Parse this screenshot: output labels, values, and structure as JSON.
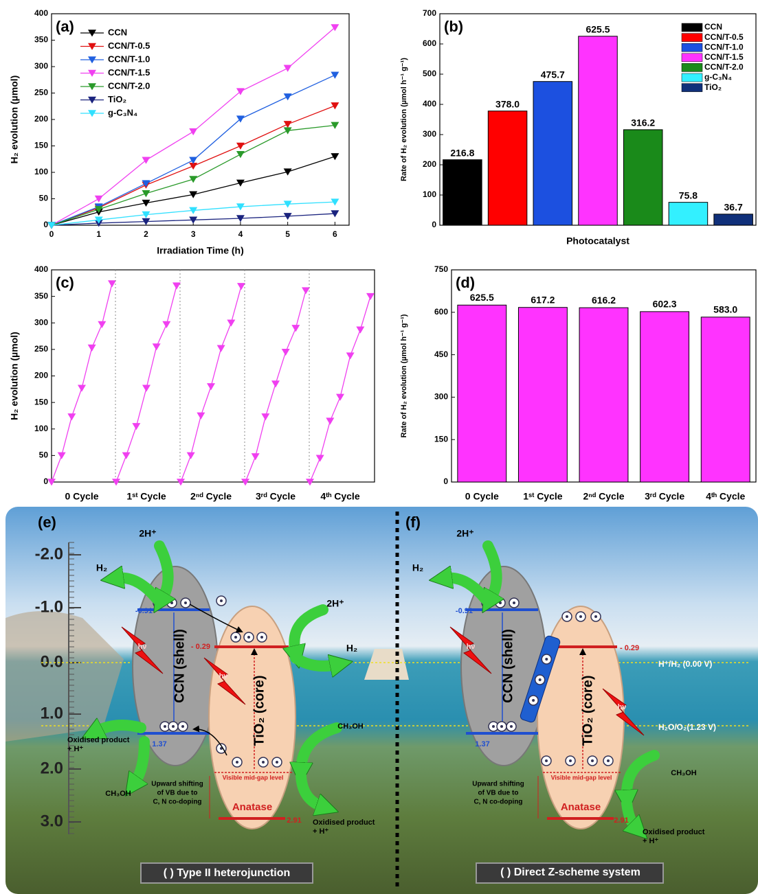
{
  "chart_data": [
    {
      "type": "line",
      "label": "(a)",
      "xlabel": "Irradiation Time (h)",
      "ylabel": "H₂ evolution (µmol)",
      "x": [
        0,
        1,
        2,
        3,
        4,
        5,
        6
      ],
      "xlim": [
        0,
        6.3
      ],
      "xticks": [
        0,
        1,
        2,
        3,
        4,
        5,
        6
      ],
      "ylim": [
        0,
        400
      ],
      "yticks": [
        0,
        50,
        100,
        150,
        200,
        250,
        300,
        350,
        400
      ],
      "grid": false,
      "legend": "top-left",
      "series": [
        {
          "name": "CCN",
          "color": "#000000",
          "values": [
            0,
            25,
            42,
            58,
            80,
            101,
            130
          ]
        },
        {
          "name": "CCN/T-0.5",
          "color": "#e01010",
          "values": [
            0,
            33,
            76,
            112,
            150,
            191,
            226
          ]
        },
        {
          "name": "CCN/T-1.0",
          "color": "#2060e0",
          "values": [
            0,
            35,
            79,
            123,
            201,
            243,
            284
          ]
        },
        {
          "name": "CCN/T-1.5",
          "color": "#f040f0",
          "values": [
            0,
            50,
            123,
            177,
            253,
            297,
            374
          ]
        },
        {
          "name": "CCN/T-2.0",
          "color": "#2a9a2a",
          "values": [
            0,
            30,
            60,
            87,
            134,
            179,
            189
          ]
        },
        {
          "name": "TiO₂",
          "color": "#1a237e",
          "values": [
            0,
            4,
            7,
            10,
            13,
            17,
            22
          ]
        },
        {
          "name": "g-C₃N₄",
          "color": "#30e0ff",
          "values": [
            0,
            10,
            20,
            28,
            35,
            40,
            44
          ]
        }
      ]
    },
    {
      "type": "bar",
      "label": "(b)",
      "xlabel": "Photocatalyst",
      "ylabel": "Rate of H₂ evolution (µmol h⁻¹ g⁻¹)",
      "ylim": [
        0,
        700
      ],
      "yticks": [
        0,
        100,
        200,
        300,
        400,
        500,
        600,
        700
      ],
      "grid": false,
      "legend": "top-right",
      "series": [
        {
          "name": "CCN",
          "color": "#000000",
          "values": [
            216.8
          ],
          "value_labels": [
            "216.8"
          ]
        },
        {
          "name": "CCN/T-0.5",
          "color": "#ff0000",
          "values": [
            378.0
          ],
          "value_labels": [
            "378.0"
          ]
        },
        {
          "name": "CCN/T-1.0",
          "color": "#1c50e0",
          "values": [
            475.7
          ],
          "value_labels": [
            "475.7"
          ]
        },
        {
          "name": "CCN/T-1.5",
          "color": "#ff33ff",
          "values": [
            625.5
          ],
          "value_labels": [
            "625.5"
          ]
        },
        {
          "name": "CCN/T-2.0",
          "color": "#1a8a1a",
          "values": [
            316.2
          ],
          "value_labels": [
            "316.2"
          ]
        },
        {
          "name": "g-C₃N₄",
          "color": "#33f0ff",
          "values": [
            75.8
          ],
          "value_labels": [
            "75.8"
          ]
        },
        {
          "name": "TiO₂",
          "color": "#10307a",
          "values": [
            36.7
          ],
          "value_labels": [
            "36.7"
          ]
        }
      ]
    },
    {
      "type": "cycle-line",
      "label": "(c)",
      "ylabel": "H₂ evolution (µmol)",
      "color": "#f040f0",
      "ylim": [
        0,
        400
      ],
      "yticks": [
        0,
        50,
        100,
        150,
        200,
        250,
        300,
        350,
        400
      ],
      "grid": false,
      "categories": [
        "0 Cycle",
        "1ˢᵗ Cycle",
        "2ⁿᵈ Cycle",
        "3ʳᵈ Cycle",
        "4ᵗʰ Cycle"
      ],
      "values": [
        [
          0,
          50,
          123,
          177,
          253,
          297,
          374
        ],
        [
          0,
          50,
          105,
          177,
          255,
          297,
          370
        ],
        [
          0,
          50,
          125,
          180,
          252,
          300,
          369
        ],
        [
          0,
          48,
          123,
          185,
          245,
          290,
          361
        ],
        [
          0,
          45,
          115,
          160,
          238,
          287,
          350
        ]
      ]
    },
    {
      "type": "bar",
      "label": "(d)",
      "ylabel": "Rate of H₂ evolution (µmol h⁻¹ g⁻¹)",
      "color": "#ff33ff",
      "ylim": [
        0,
        750
      ],
      "yticks": [
        0,
        150,
        300,
        450,
        600,
        750
      ],
      "grid": false,
      "categories": [
        "0 Cycle",
        "1ˢᵗ Cycle",
        "2ⁿᵈ Cycle",
        "3ʳᵈ Cycle",
        "4ᵗʰ Cycle"
      ],
      "values": [
        625.5,
        617.2,
        616.2,
        602.3,
        583.0
      ],
      "value_labels": [
        "625.5",
        "617.2",
        "616.2",
        "602.3",
        "583.0"
      ]
    }
  ],
  "schemes": {
    "energy_ticks": [
      "-2.0",
      "-1.0",
      "0.0",
      "1.0",
      "2.0",
      "3.0"
    ],
    "panels": [
      {
        "label": "(e)",
        "h_in": "2H⁺",
        "h2_out": "H₂",
        "cb_ccn": "-0.91",
        "vb_ccn": "1.37",
        "cb_tio2": "- 0.29",
        "vb_tio2": "2.91",
        "ccn": "CCN (shell)",
        "tio2": "TiO₂ (core)",
        "midgap": "Visible mid-gap level",
        "anatase": "Anatase",
        "shift": [
          "Upward shifting",
          "of VB due to",
          "C, N co-doping"
        ],
        "meoh_l": "CH₃OH",
        "ox_l": [
          "Oxidised product",
          "+ H⁺"
        ],
        "meoh_r": "CH₃OH",
        "ox_r": [
          "Oxidised product",
          "+ H⁺"
        ],
        "h_in2": "2H⁺",
        "h2_out2": "H₂",
        "hv1": "hν",
        "hv2": "hν",
        "caption": "( ) Type II heterojunction"
      },
      {
        "label": "(f)",
        "h_in": "2H⁺",
        "h2_out": "H₂",
        "cb_ccn": "-0.91",
        "vb_ccn": "1.37",
        "cb_tio2": "- 0.29",
        "vb_tio2": "2.91",
        "ccn": "CCN (shell)",
        "tio2": "TiO₂ (core)",
        "midgap": "Visible mid-gap level",
        "anatase": "Anatase",
        "shift": [
          "Upward shifting",
          "of VB due to",
          "C, N co-doping"
        ],
        "meoh_r": "CH₃OH",
        "ox_r": [
          "Oxidised product",
          "+ H⁺"
        ],
        "hv1": "hν",
        "hv2": "hν",
        "redox1": "H⁺/H₂ (0.00 V)",
        "redox2": "H₂O/O₂(1.23 V)",
        "caption": "( ) Direct Z-scheme system"
      }
    ]
  }
}
